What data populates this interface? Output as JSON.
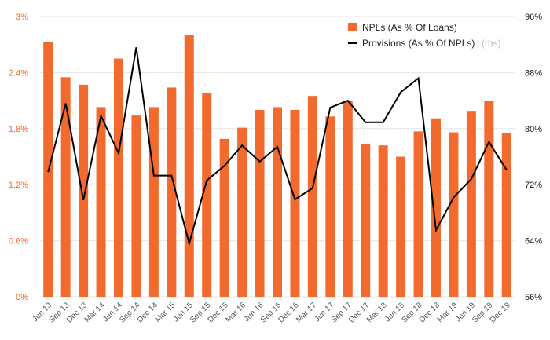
{
  "chart_data": {
    "type": "bar",
    "categories": [
      "Jun 13",
      "Sep 13",
      "Dec 13",
      "Mar 14",
      "Jun 14",
      "Sep 14",
      "Dec 14",
      "Mar 15",
      "Jun 15",
      "Sep 15",
      "Dec 15",
      "Mar 16",
      "Jun 16",
      "Sep 16",
      "Dec 16",
      "Mar 17",
      "Jun 17",
      "Sep 17",
      "Dec 17",
      "Mar 18",
      "Jun 18",
      "Sep 18",
      "Dec 18",
      "Mar 19",
      "Jun 19",
      "Sep 19",
      "Dec 19"
    ],
    "series": [
      {
        "name": "NPLs (As % Of Loans)",
        "type": "bar",
        "axis": "left",
        "color": "#f26a2e",
        "values": [
          2.73,
          2.35,
          2.27,
          2.03,
          2.55,
          1.94,
          2.03,
          2.24,
          2.8,
          2.18,
          1.69,
          1.81,
          2.0,
          2.03,
          2.0,
          2.15,
          1.93,
          2.1,
          1.63,
          1.62,
          1.5,
          1.77,
          1.91,
          1.76,
          1.99,
          2.1,
          1.75
        ]
      },
      {
        "name": "Provisions (As % Of NPLs)",
        "type": "line",
        "axis": "right",
        "color": "#000000",
        "values": [
          73.8,
          83.6,
          69.8,
          81.8,
          76.5,
          91.6,
          73.3,
          73.3,
          63.6,
          72.6,
          74.7,
          77.6,
          75.3,
          77.4,
          69.9,
          71.5,
          83.0,
          84.0,
          80.9,
          80.9,
          85.2,
          87.2,
          65.5,
          70.2,
          72.8,
          78.1,
          74.1
        ]
      }
    ],
    "legend": [
      {
        "label": "NPLs (As % Of Loans)",
        "note": ""
      },
      {
        "label": "Provisions (As % Of NPLs)",
        "note": "(rhs)"
      }
    ],
    "y_left": {
      "ticks": [
        "0%",
        "0.6%",
        "1.2%",
        "1.8%",
        "2.4%",
        "3%"
      ],
      "min": 0,
      "max": 3
    },
    "y_right": {
      "ticks": [
        "56%",
        "64%",
        "72%",
        "80%",
        "88%",
        "96%"
      ],
      "min": 56,
      "max": 96
    },
    "grid": true,
    "legend_position": "top-right"
  }
}
